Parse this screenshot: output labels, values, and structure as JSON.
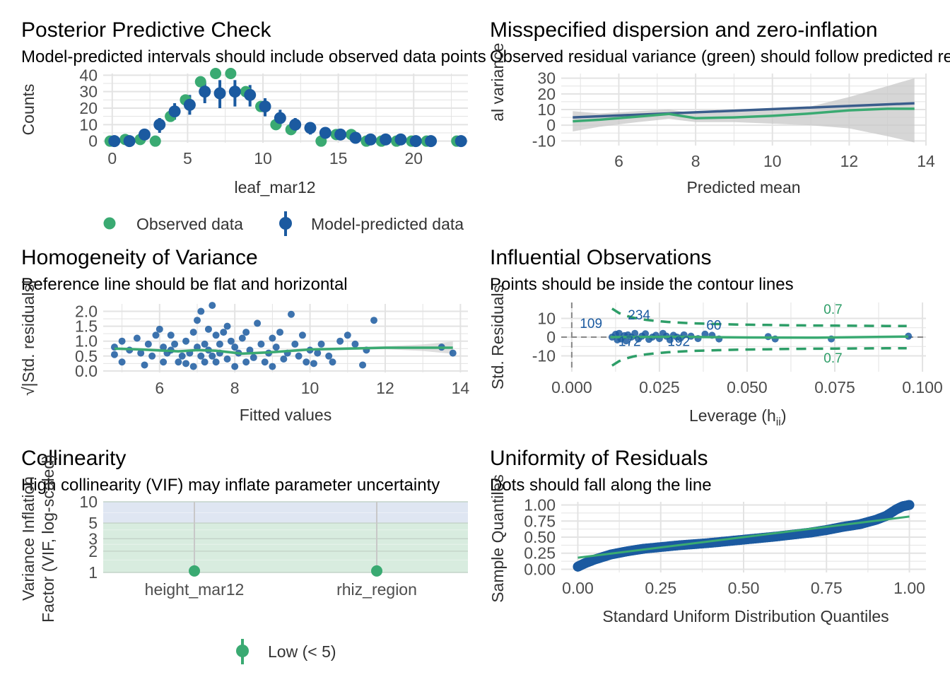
{
  "colors": {
    "observed": "#3aaa72",
    "predicted": "#1b5aa0",
    "fit_line": "#3a5d8c",
    "grid": "#e3e3e3",
    "band": "#c8c8c8",
    "contour": "#2e9e68",
    "ref_dash": "#888888",
    "vif_low_fill": "#d8ecdf",
    "vif_mod_fill": "#dfe6f2",
    "vif_high_fill": "#f6d8d8"
  },
  "chart_data": [
    {
      "id": "ppc",
      "type": "scatter",
      "title": "Posterior Predictive Check",
      "subtitle": "Model-predicted intervals should include observed data points",
      "xlabel": "leaf_mar12",
      "ylabel": "Counts",
      "xlim": [
        -0.6,
        23.6
      ],
      "ylim": [
        -1,
        41
      ],
      "xticks": [
        0,
        5,
        10,
        15,
        20
      ],
      "yticks": [
        0,
        10,
        20,
        30,
        40
      ],
      "legend": [
        "Observed data",
        "Model-predicted data"
      ],
      "legend_position": "bottom",
      "observed": {
        "x": [
          0,
          1,
          2,
          3,
          4,
          5,
          6,
          7,
          8,
          9,
          10,
          11,
          12,
          14,
          15,
          16,
          17,
          18,
          19,
          20,
          21,
          23
        ],
        "y": [
          0,
          1,
          1,
          0,
          15,
          25,
          36,
          41,
          41,
          30,
          21,
          10,
          7,
          0,
          4,
          4,
          0,
          0,
          0,
          0,
          0,
          0
        ]
      },
      "predicted": {
        "x": [
          0,
          1,
          2,
          3,
          4,
          5,
          6,
          7,
          8,
          9,
          10,
          11,
          12,
          13,
          14,
          15,
          16,
          17,
          18,
          19,
          20,
          21,
          23
        ],
        "y": [
          0,
          0,
          4,
          10,
          18,
          22,
          30,
          29,
          30,
          28,
          21,
          14,
          10,
          8,
          5,
          4,
          2,
          1,
          1,
          1,
          0,
          0,
          0
        ],
        "lo": [
          0,
          0,
          1,
          5,
          13,
          16,
          23,
          20,
          21,
          21,
          15,
          9,
          6,
          4,
          2,
          2,
          1,
          0,
          0,
          0,
          0,
          0,
          0
        ],
        "hi": [
          1,
          2,
          7,
          14,
          23,
          28,
          36,
          37,
          37,
          34,
          26,
          19,
          14,
          11,
          7,
          6,
          3,
          2,
          2,
          2,
          1,
          1,
          0
        ]
      }
    },
    {
      "id": "disp",
      "type": "line",
      "title": "Misspecified dispersion and zero-inflation",
      "subtitle": "Observed residual variance (green) should follow predicted residual variance (blue)",
      "xlabel": "Predicted mean",
      "ylabel": "Residual variance",
      "xlim": [
        4.5,
        14.0
      ],
      "ylim": [
        -13,
        33
      ],
      "xticks": [
        6,
        8,
        10,
        12,
        14
      ],
      "yticks": [
        -10,
        0,
        10,
        20,
        30
      ],
      "observed_line": {
        "x": [
          4.8,
          5.5,
          6.5,
          7.3,
          8.0,
          9.0,
          10.0,
          11.0,
          12.0,
          13.0,
          13.7
        ],
        "y": [
          2.5,
          3.5,
          5.5,
          7.2,
          4.5,
          5.0,
          6.0,
          7.5,
          9.5,
          10.5,
          10.5
        ]
      },
      "band_upper": [
        9,
        7.5,
        9,
        10,
        7.5,
        9,
        10,
        12,
        18,
        25,
        30
      ],
      "band_lower": [
        -4,
        -1,
        2,
        4,
        2,
        2,
        1,
        0,
        -2,
        -7,
        -11
      ],
      "predicted_line": {
        "x": [
          4.8,
          13.7
        ],
        "y": [
          5.0,
          14.0
        ]
      }
    },
    {
      "id": "homog",
      "type": "scatter",
      "title": "Homogeneity of Variance",
      "subtitle": "Reference line should be flat and horizontal",
      "xlabel": "Fitted values",
      "ylabel": "√|Std. residuals|",
      "xlim": [
        4.5,
        14.2
      ],
      "ylim": [
        -0.05,
        2.25
      ],
      "xticks": [
        6,
        8,
        10,
        12,
        14
      ],
      "yticks": [
        0.0,
        0.5,
        1.0,
        1.5,
        2.0
      ],
      "ytick_labels": [
        "0.0",
        "0.5",
        "1.0",
        "1.5",
        "2.0"
      ],
      "points": {
        "x": [
          4.8,
          4.8,
          5.0,
          5.0,
          5.2,
          5.4,
          5.5,
          5.6,
          5.7,
          5.8,
          5.9,
          6.0,
          6.1,
          6.1,
          6.2,
          6.3,
          6.3,
          6.4,
          6.5,
          6.6,
          6.7,
          6.7,
          6.8,
          6.9,
          6.9,
          7.0,
          7.0,
          7.1,
          7.1,
          7.2,
          7.2,
          7.3,
          7.3,
          7.4,
          7.4,
          7.5,
          7.5,
          7.6,
          7.6,
          7.7,
          7.8,
          7.8,
          7.9,
          8.0,
          8.0,
          8.1,
          8.2,
          8.3,
          8.3,
          8.4,
          8.5,
          8.6,
          8.7,
          8.8,
          8.9,
          9.0,
          9.0,
          9.1,
          9.2,
          9.3,
          9.4,
          9.5,
          9.6,
          9.7,
          9.8,
          9.9,
          10.0,
          10.1,
          10.2,
          10.3,
          10.5,
          10.6,
          10.8,
          11.0,
          11.2,
          11.4,
          11.5,
          11.7,
          13.5,
          13.8
        ],
        "y": [
          0.8,
          0.55,
          0.3,
          1.0,
          0.7,
          1.1,
          0.6,
          0.2,
          0.9,
          0.5,
          1.2,
          1.4,
          0.3,
          0.8,
          0.6,
          1.2,
          0.7,
          0.9,
          0.3,
          0.5,
          1.0,
          0.25,
          0.6,
          1.3,
          0.15,
          0.8,
          1.7,
          0.5,
          2.0,
          0.9,
          0.3,
          0.7,
          1.4,
          0.5,
          2.2,
          1.2,
          0.3,
          0.9,
          0.6,
          1.3,
          1.5,
          0.4,
          1.0,
          0.8,
          0.15,
          0.6,
          1.1,
          0.3,
          1.3,
          0.7,
          0.45,
          1.6,
          0.9,
          0.3,
          0.6,
          1.1,
          0.15,
          0.8,
          1.3,
          0.4,
          0.6,
          1.9,
          0.9,
          0.5,
          1.2,
          0.3,
          0.7,
          0.25,
          0.6,
          0.9,
          0.5,
          0.3,
          1.0,
          1.2,
          0.9,
          0.2,
          0.7,
          1.7,
          0.8,
          0.6
        ]
      },
      "fit_line": {
        "x": [
          4.8,
          5.5,
          6.5,
          7.0,
          7.5,
          8.2,
          9.0,
          10.0,
          11.0,
          12.0,
          13.0,
          13.8
        ],
        "y": [
          0.75,
          0.72,
          0.66,
          0.7,
          0.68,
          0.58,
          0.63,
          0.72,
          0.75,
          0.78,
          0.78,
          0.78
        ]
      }
    },
    {
      "id": "influ",
      "type": "scatter",
      "title": "Influential Observations",
      "subtitle": "Points should be inside the contour lines",
      "xlabel": "Leverage (h",
      "xlabel_sub": "ii",
      "xlabel_tail": ")",
      "ylabel": "Std. Residuals",
      "xlim": [
        -0.003,
        0.101
      ],
      "ylim": [
        -18.5,
        18.5
      ],
      "xticks": [
        0.0,
        0.025,
        0.05,
        0.075,
        0.1
      ],
      "xtick_labels": [
        "0.000",
        "0.025",
        "0.050",
        "0.075",
        "0.100"
      ],
      "yticks": [
        -10,
        0,
        10
      ],
      "contour_label": "0.7",
      "point_labels": [
        {
          "text": "109",
          "x": 0.0055,
          "y": 5.0
        },
        {
          "text": "234",
          "x": 0.0192,
          "y": 9.5
        },
        {
          "text": "60",
          "x": 0.0405,
          "y": 4.0
        },
        {
          "text": "172",
          "x": 0.0165,
          "y": -4.8
        },
        {
          "text": "192",
          "x": 0.0305,
          "y": -4.8
        }
      ],
      "points": {
        "x": [
          0.0115,
          0.0125,
          0.013,
          0.0135,
          0.014,
          0.015,
          0.0155,
          0.016,
          0.017,
          0.018,
          0.019,
          0.02,
          0.021,
          0.022,
          0.023,
          0.024,
          0.025,
          0.026,
          0.027,
          0.028,
          0.029,
          0.03,
          0.031,
          0.032,
          0.034,
          0.036,
          0.038,
          0.04,
          0.042,
          0.056,
          0.058,
          0.074,
          0.096
        ],
        "y": [
          0,
          1.5,
          -1.5,
          2,
          -1,
          0.8,
          -2,
          1.2,
          0,
          2,
          -1,
          0.5,
          1.8,
          -1.2,
          0,
          1,
          -0.8,
          2,
          0.5,
          -1.5,
          1,
          0,
          -0.5,
          1.2,
          0.5,
          -0.8,
          1.6,
          1,
          -1,
          0.3,
          -1,
          -1,
          0.5
        ]
      },
      "fit_line": {
        "x": [
          0.011,
          0.03,
          0.05,
          0.07,
          0.096
        ],
        "y": [
          0,
          0.2,
          -0.2,
          -0.3,
          0.3
        ]
      }
    },
    {
      "id": "vif",
      "type": "scatter",
      "title": "Collinearity",
      "subtitle": "High collinearity (VIF) may inflate parameter uncertainty",
      "xlabel": "",
      "ylabel": "Variance Inflation Factor (VIF, log-scaled)",
      "ylabel_line1": "Variance Inflation",
      "ylabel_line2": "Factor (VIF, log-scaled)",
      "categories": [
        "height_mar12",
        "rhiz_region"
      ],
      "values": [
        1.05,
        1.05
      ],
      "ylim": [
        1,
        10
      ],
      "yscale": "log",
      "yticks": [
        1,
        2,
        3,
        5,
        10
      ],
      "legend": [
        "Low (< 5)"
      ],
      "legend_position": "bottom"
    },
    {
      "id": "unif",
      "type": "scatter",
      "title": "Uniformity of Residuals",
      "subtitle": "Dots should fall along the line",
      "xlabel": "Standard Uniform Distribution Quantiles",
      "ylabel": "Sample Quantiles",
      "xlim": [
        -0.05,
        1.05
      ],
      "ylim": [
        -0.05,
        1.05
      ],
      "xticks": [
        0.0,
        0.25,
        0.5,
        0.75,
        1.0
      ],
      "xtick_labels": [
        "0.00",
        "0.25",
        "0.50",
        "0.75",
        "1.00"
      ],
      "yticks": [
        0.0,
        0.25,
        0.5,
        0.75,
        1.0
      ],
      "ytick_labels": [
        "0.00",
        "0.25",
        "0.50",
        "0.75",
        "1.00"
      ],
      "qq_curve": {
        "x": [
          0.0,
          0.02,
          0.05,
          0.1,
          0.15,
          0.2,
          0.3,
          0.4,
          0.5,
          0.6,
          0.7,
          0.75,
          0.8,
          0.85,
          0.9,
          0.93,
          0.96,
          0.98,
          1.0
        ],
        "y": [
          0.04,
          0.09,
          0.15,
          0.23,
          0.28,
          0.32,
          0.37,
          0.41,
          0.46,
          0.51,
          0.57,
          0.61,
          0.66,
          0.7,
          0.77,
          0.83,
          0.93,
          0.98,
          1.0
        ]
      },
      "reference_line": {
        "x": [
          0.0,
          1.0
        ],
        "y": [
          0.18,
          0.82
        ]
      }
    }
  ]
}
